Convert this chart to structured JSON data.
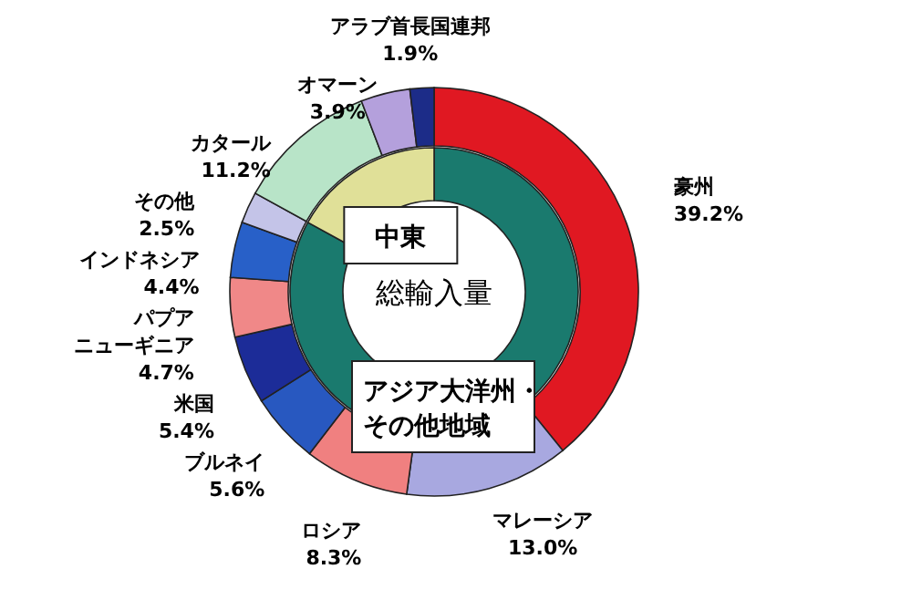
{
  "chart_data": [
    {
      "type": "donut",
      "categories": [
        "豪州",
        "マレーシア",
        "ロシア",
        "ブルネイ",
        "米国",
        "パプアニューギニア",
        "インドネシア",
        "その他",
        "カタール",
        "オマーン",
        "アラブ首長国連邦"
      ],
      "values": [
        39.2,
        13.0,
        8.3,
        5.6,
        5.4,
        4.7,
        4.4,
        2.5,
        11.2,
        3.9,
        1.9
      ],
      "colors": [
        "#e01822",
        "#a8a8e0",
        "#f08080",
        "#2858c0",
        "#1c2c98",
        "#f08888",
        "#2860c8",
        "#c4c4e8",
        "#b8e4c8",
        "#b4a0dc",
        "#1c2c88"
      ],
      "value_labels": [
        "39.2%",
        "13.0%",
        "8.3%",
        "5.6%",
        "5.4%",
        "4.7%",
        "4.4%",
        "2.5%",
        "11.2%",
        "3.9%",
        "1.9%"
      ]
    },
    {
      "type": "donut",
      "title": "総輸入量",
      "categories": [
        "アジア大洋州・その他地域",
        "中東"
      ],
      "values": [
        83.0,
        17.0
      ],
      "colors": [
        "#1a7a6e",
        "#e0e098"
      ]
    }
  ]
}
